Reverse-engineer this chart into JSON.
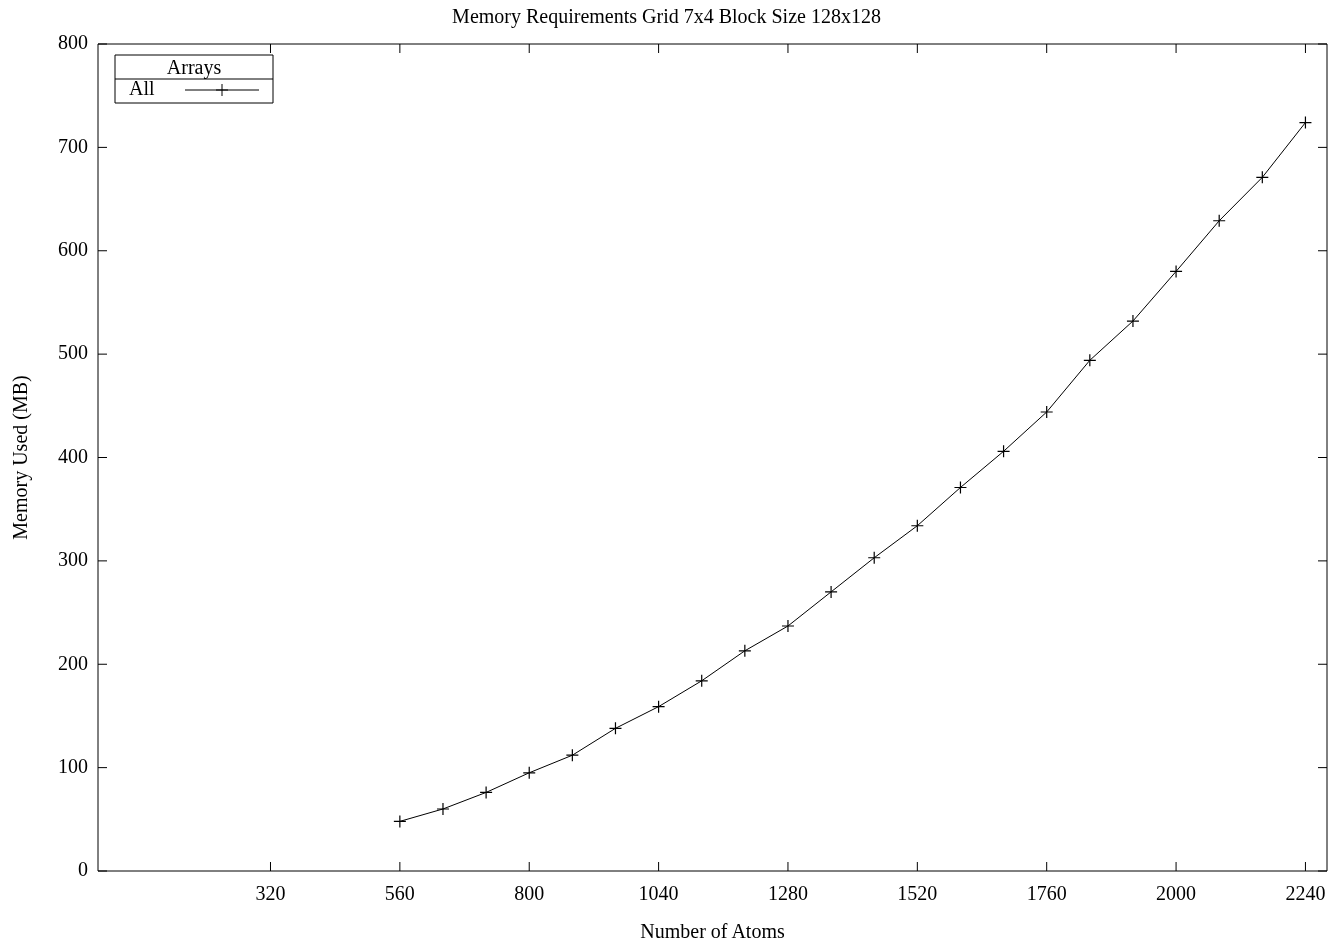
{
  "chart_data": {
    "type": "line",
    "title": "Memory Requirements Grid 7x4 Block Size 128x128",
    "xlabel": "Number of Atoms",
    "ylabel": "Memory Used (MB)",
    "legend_title": "Arrays",
    "legend": "top left",
    "grid": false,
    "marker": "cross",
    "line_style": "solid",
    "xlim": [
      0,
      2280
    ],
    "xticks": [
      320,
      560,
      800,
      1040,
      1280,
      1520,
      1760,
      2000,
      2240
    ],
    "ylim": [
      0,
      800
    ],
    "yticks": [
      0,
      100,
      200,
      300,
      400,
      500,
      600,
      700,
      800
    ],
    "x": [
      560,
      640,
      720,
      800,
      880,
      960,
      1040,
      1120,
      1200,
      1280,
      1360,
      1440,
      1520,
      1600,
      1680,
      1760,
      1840,
      1920,
      2000,
      2080,
      2160,
      2240
    ],
    "series": [
      {
        "name": "All",
        "color": "#000000",
        "values": [
          48,
          60,
          76,
          95,
          112,
          138,
          159,
          184,
          213,
          237,
          270,
          303,
          334,
          371,
          406,
          444,
          494,
          532,
          580,
          629,
          671,
          724
        ]
      }
    ]
  }
}
